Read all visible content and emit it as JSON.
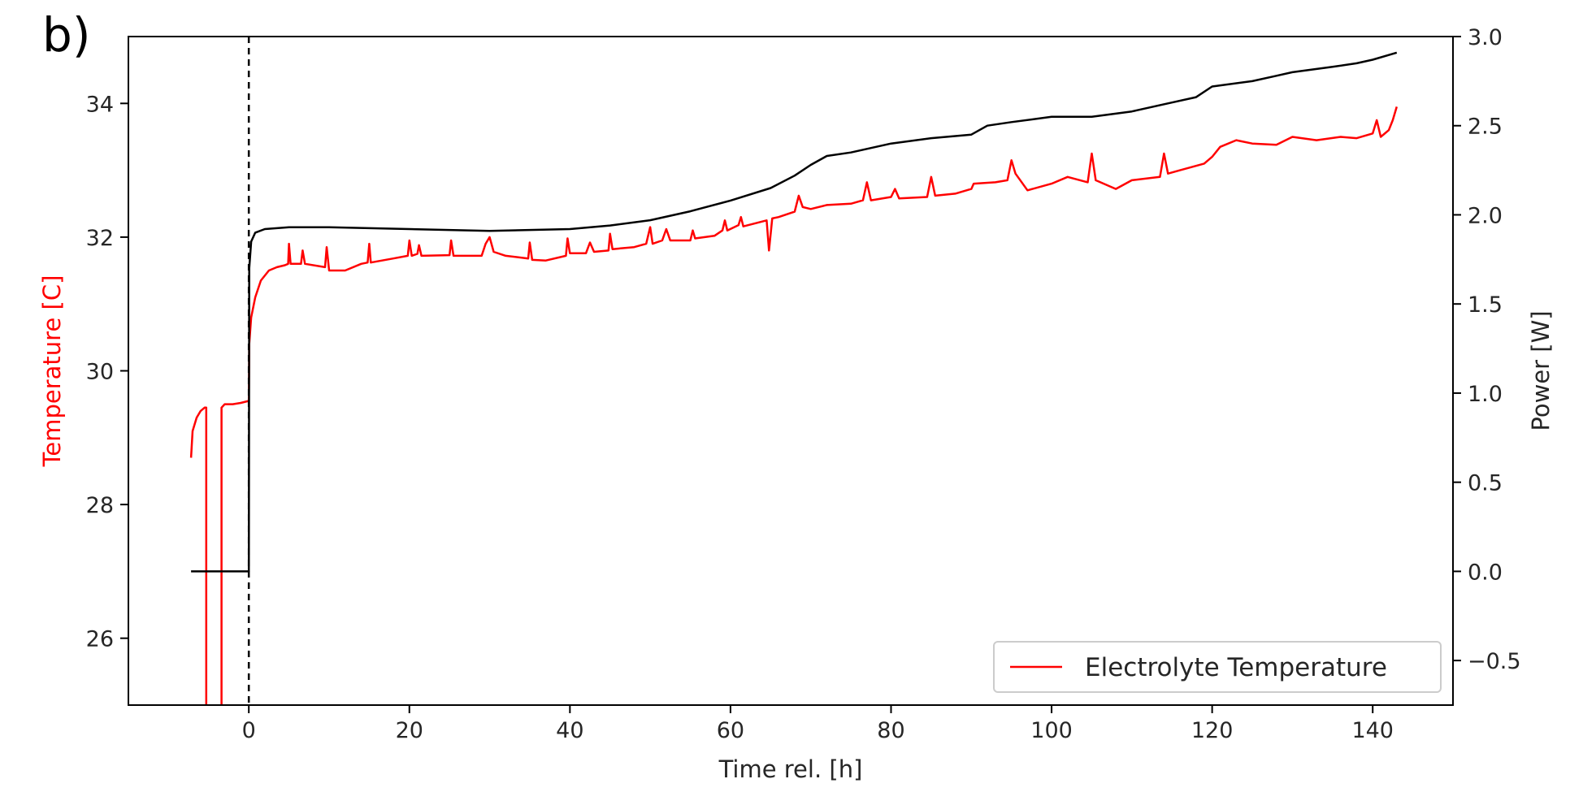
{
  "panel_label": "b)",
  "chart_data": {
    "type": "line",
    "title": "",
    "xlabel": "Time rel. [h]",
    "ylabel_left": "Temperature [C]",
    "ylabel_right": "Power [W]",
    "xlim": [
      -15,
      150
    ],
    "ylim_left": [
      25,
      35
    ],
    "ylim_right": [
      -0.75,
      3.0
    ],
    "x_ticks": [
      0,
      20,
      40,
      60,
      80,
      100,
      120,
      140
    ],
    "y_left_ticks": [
      26,
      28,
      30,
      32,
      34
    ],
    "y_right_ticks": [
      -0.5,
      0.0,
      0.5,
      1.0,
      1.5,
      2.0,
      2.5,
      3.0
    ],
    "y_right_tick_labels": [
      "−0.5",
      "0.0",
      "0.5",
      "1.0",
      "1.5",
      "2.0",
      "2.5",
      "3.0"
    ],
    "grid": false,
    "legend_position": "lower-right",
    "vertical_line": {
      "x": 0,
      "style": "dashed",
      "color": "#000000"
    },
    "series": [
      {
        "name": "Electrolyte Temperature",
        "axis": "left",
        "color": "#ff0000",
        "segments": [
          [
            [
              -7.2,
              28.7
            ],
            [
              -7.0,
              29.1
            ],
            [
              -6.5,
              29.3
            ],
            [
              -6.0,
              29.4
            ],
            [
              -5.5,
              29.45
            ],
            [
              -5.3,
              29.45
            ],
            [
              -5.3,
              24.9
            ]
          ],
          [
            [
              -3.4,
              24.9
            ],
            [
              -3.4,
              29.45
            ],
            [
              -3.0,
              29.5
            ],
            [
              -2.0,
              29.5
            ],
            [
              -1.0,
              29.52
            ],
            [
              0.0,
              29.55
            ],
            [
              0.05,
              30.4
            ],
            [
              0.3,
              30.8
            ],
            [
              0.8,
              31.1
            ],
            [
              1.5,
              31.35
            ],
            [
              2.5,
              31.5
            ],
            [
              3.5,
              31.55
            ],
            [
              4.5,
              31.58
            ],
            [
              4.9,
              31.6
            ],
            [
              5.0,
              31.9
            ],
            [
              5.2,
              31.6
            ],
            [
              6.5,
              31.6
            ],
            [
              6.7,
              31.8
            ],
            [
              7.0,
              31.6
            ],
            [
              9.5,
              31.55
            ],
            [
              9.7,
              31.85
            ],
            [
              10.0,
              31.5
            ],
            [
              12.0,
              31.5
            ],
            [
              14.0,
              31.6
            ],
            [
              14.8,
              31.62
            ],
            [
              15.0,
              31.9
            ],
            [
              15.2,
              31.62
            ],
            [
              18.0,
              31.68
            ],
            [
              19.8,
              31.72
            ],
            [
              20.0,
              31.95
            ],
            [
              20.3,
              31.72
            ],
            [
              21.0,
              31.75
            ],
            [
              21.2,
              31.88
            ],
            [
              21.5,
              31.72
            ],
            [
              25.0,
              31.73
            ],
            [
              25.2,
              31.95
            ],
            [
              25.5,
              31.72
            ],
            [
              29.0,
              31.72
            ],
            [
              29.5,
              31.9
            ],
            [
              30.0,
              32.0
            ],
            [
              30.5,
              31.78
            ],
            [
              32.0,
              31.72
            ],
            [
              34.8,
              31.68
            ],
            [
              35.0,
              31.92
            ],
            [
              35.3,
              31.66
            ],
            [
              37.0,
              31.65
            ],
            [
              39.5,
              31.72
            ],
            [
              39.7,
              31.98
            ],
            [
              40.0,
              31.76
            ],
            [
              42.0,
              31.76
            ],
            [
              42.5,
              31.92
            ],
            [
              43.0,
              31.78
            ],
            [
              44.8,
              31.8
            ],
            [
              45.0,
              32.05
            ],
            [
              45.3,
              31.82
            ],
            [
              48.0,
              31.85
            ],
            [
              49.5,
              31.9
            ],
            [
              50.0,
              32.15
            ],
            [
              50.3,
              31.9
            ],
            [
              51.5,
              31.95
            ],
            [
              52.0,
              32.12
            ],
            [
              52.5,
              31.95
            ],
            [
              55.0,
              31.95
            ],
            [
              55.3,
              32.1
            ],
            [
              55.6,
              31.98
            ],
            [
              58.0,
              32.02
            ],
            [
              59.0,
              32.1
            ],
            [
              59.3,
              32.25
            ],
            [
              59.6,
              32.1
            ],
            [
              61.0,
              32.18
            ],
            [
              61.3,
              32.3
            ],
            [
              61.6,
              32.16
            ],
            [
              64.5,
              32.25
            ],
            [
              64.8,
              31.8
            ],
            [
              65.2,
              32.28
            ],
            [
              66.0,
              32.3
            ],
            [
              68.0,
              32.38
            ],
            [
              68.5,
              32.62
            ],
            [
              69.0,
              32.45
            ],
            [
              70.0,
              32.42
            ],
            [
              72.0,
              32.48
            ],
            [
              75.0,
              32.5
            ],
            [
              76.5,
              32.55
            ],
            [
              77.0,
              32.82
            ],
            [
              77.5,
              32.55
            ],
            [
              80.0,
              32.6
            ],
            [
              80.5,
              32.72
            ],
            [
              81.0,
              32.58
            ],
            [
              84.5,
              32.6
            ],
            [
              85.0,
              32.9
            ],
            [
              85.5,
              32.62
            ],
            [
              88.0,
              32.65
            ],
            [
              90.0,
              32.72
            ],
            [
              90.3,
              32.8
            ],
            [
              93.0,
              32.82
            ],
            [
              94.5,
              32.85
            ],
            [
              95.0,
              33.15
            ],
            [
              95.5,
              32.95
            ],
            [
              97.0,
              32.7
            ],
            [
              100.0,
              32.8
            ],
            [
              102.0,
              32.9
            ],
            [
              104.5,
              32.82
            ],
            [
              105.0,
              33.25
            ],
            [
              105.5,
              32.85
            ],
            [
              108.0,
              32.72
            ],
            [
              110.0,
              32.85
            ],
            [
              113.5,
              32.9
            ],
            [
              114.0,
              33.25
            ],
            [
              114.5,
              32.95
            ],
            [
              116.0,
              33.0
            ],
            [
              119.0,
              33.1
            ],
            [
              120.0,
              33.2
            ],
            [
              121.0,
              33.35
            ],
            [
              123.0,
              33.45
            ],
            [
              125.0,
              33.4
            ],
            [
              128.0,
              33.38
            ],
            [
              130.0,
              33.5
            ],
            [
              133.0,
              33.45
            ],
            [
              136.0,
              33.5
            ],
            [
              138.0,
              33.48
            ],
            [
              140.0,
              33.55
            ],
            [
              140.5,
              33.75
            ],
            [
              141.0,
              33.5
            ],
            [
              142.0,
              33.6
            ],
            [
              142.5,
              33.75
            ],
            [
              143.0,
              33.95
            ]
          ]
        ]
      },
      {
        "name": "",
        "axis": "right",
        "color": "#000000",
        "segments": [
          [
            [
              -7.2,
              0.0
            ],
            [
              0.0,
              0.0
            ],
            [
              0.05,
              1.7
            ],
            [
              0.3,
              1.85
            ],
            [
              0.8,
              1.9
            ],
            [
              2.0,
              1.92
            ],
            [
              5.0,
              1.93
            ],
            [
              10.0,
              1.93
            ],
            [
              20.0,
              1.92
            ],
            [
              30.0,
              1.91
            ],
            [
              40.0,
              1.92
            ],
            [
              45.0,
              1.94
            ],
            [
              50.0,
              1.97
            ],
            [
              55.0,
              2.02
            ],
            [
              60.0,
              2.08
            ],
            [
              65.0,
              2.15
            ],
            [
              68.0,
              2.22
            ],
            [
              70.0,
              2.28
            ],
            [
              72.0,
              2.33
            ],
            [
              75.0,
              2.35
            ],
            [
              80.0,
              2.4
            ],
            [
              85.0,
              2.43
            ],
            [
              90.0,
              2.45
            ],
            [
              92.0,
              2.5
            ],
            [
              95.0,
              2.52
            ],
            [
              100.0,
              2.55
            ],
            [
              105.0,
              2.55
            ],
            [
              110.0,
              2.58
            ],
            [
              115.0,
              2.63
            ],
            [
              118.0,
              2.66
            ],
            [
              120.0,
              2.72
            ],
            [
              125.0,
              2.75
            ],
            [
              128.0,
              2.78
            ],
            [
              130.0,
              2.8
            ],
            [
              135.0,
              2.83
            ],
            [
              138.0,
              2.85
            ],
            [
              140.0,
              2.87
            ],
            [
              143.0,
              2.91
            ]
          ]
        ]
      }
    ],
    "legend": [
      {
        "label": "Electrolyte Temperature",
        "color": "#ff0000"
      }
    ]
  }
}
